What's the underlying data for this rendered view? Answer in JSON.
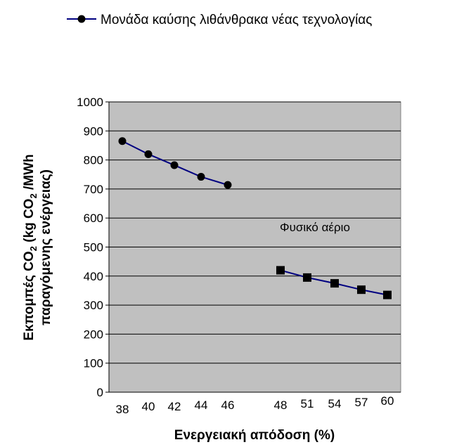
{
  "chart_data": {
    "type": "line",
    "xlabel": "Ενεργειακή απόδοση (%)",
    "ylabel_line1_pre": "Εκπομπές CO",
    "ylabel_line1_sub": "2",
    "ylabel_line1_mid": " (kg CO",
    "ylabel_line1_sub2": "2",
    "ylabel_line1_post": " /MWh",
    "ylabel_line2": "παραγόμενης ενέργειας)",
    "ylim": [
      0,
      1000
    ],
    "yticks": [
      0,
      100,
      200,
      300,
      400,
      500,
      600,
      700,
      800,
      900,
      1000
    ],
    "categories": [
      "38",
      "40",
      "42",
      "44",
      "46",
      "48",
      "51",
      "54",
      "57",
      "60"
    ],
    "series": [
      {
        "name": "Μονάδα καύσης λιθάνθρακα νέας τεχνολογίας",
        "marker": "circle",
        "color": "#000080",
        "points": [
          {
            "x": "38",
            "y": 865
          },
          {
            "x": "40",
            "y": 820
          },
          {
            "x": "42",
            "y": 782
          },
          {
            "x": "44",
            "y": 742
          },
          {
            "x": "46",
            "y": 714
          }
        ]
      },
      {
        "marker": "square",
        "color": "#000080",
        "points": [
          {
            "x": "48",
            "y": 420
          },
          {
            "x": "51",
            "y": 395
          },
          {
            "x": "54",
            "y": 375
          },
          {
            "x": "57",
            "y": 353
          },
          {
            "x": "60",
            "y": 335
          }
        ]
      }
    ],
    "annotations": [
      {
        "text": "Φυσικό αέριο"
      }
    ],
    "legend_position": "top",
    "plot_background": "#c0c0c0",
    "grid": "horizontal"
  }
}
